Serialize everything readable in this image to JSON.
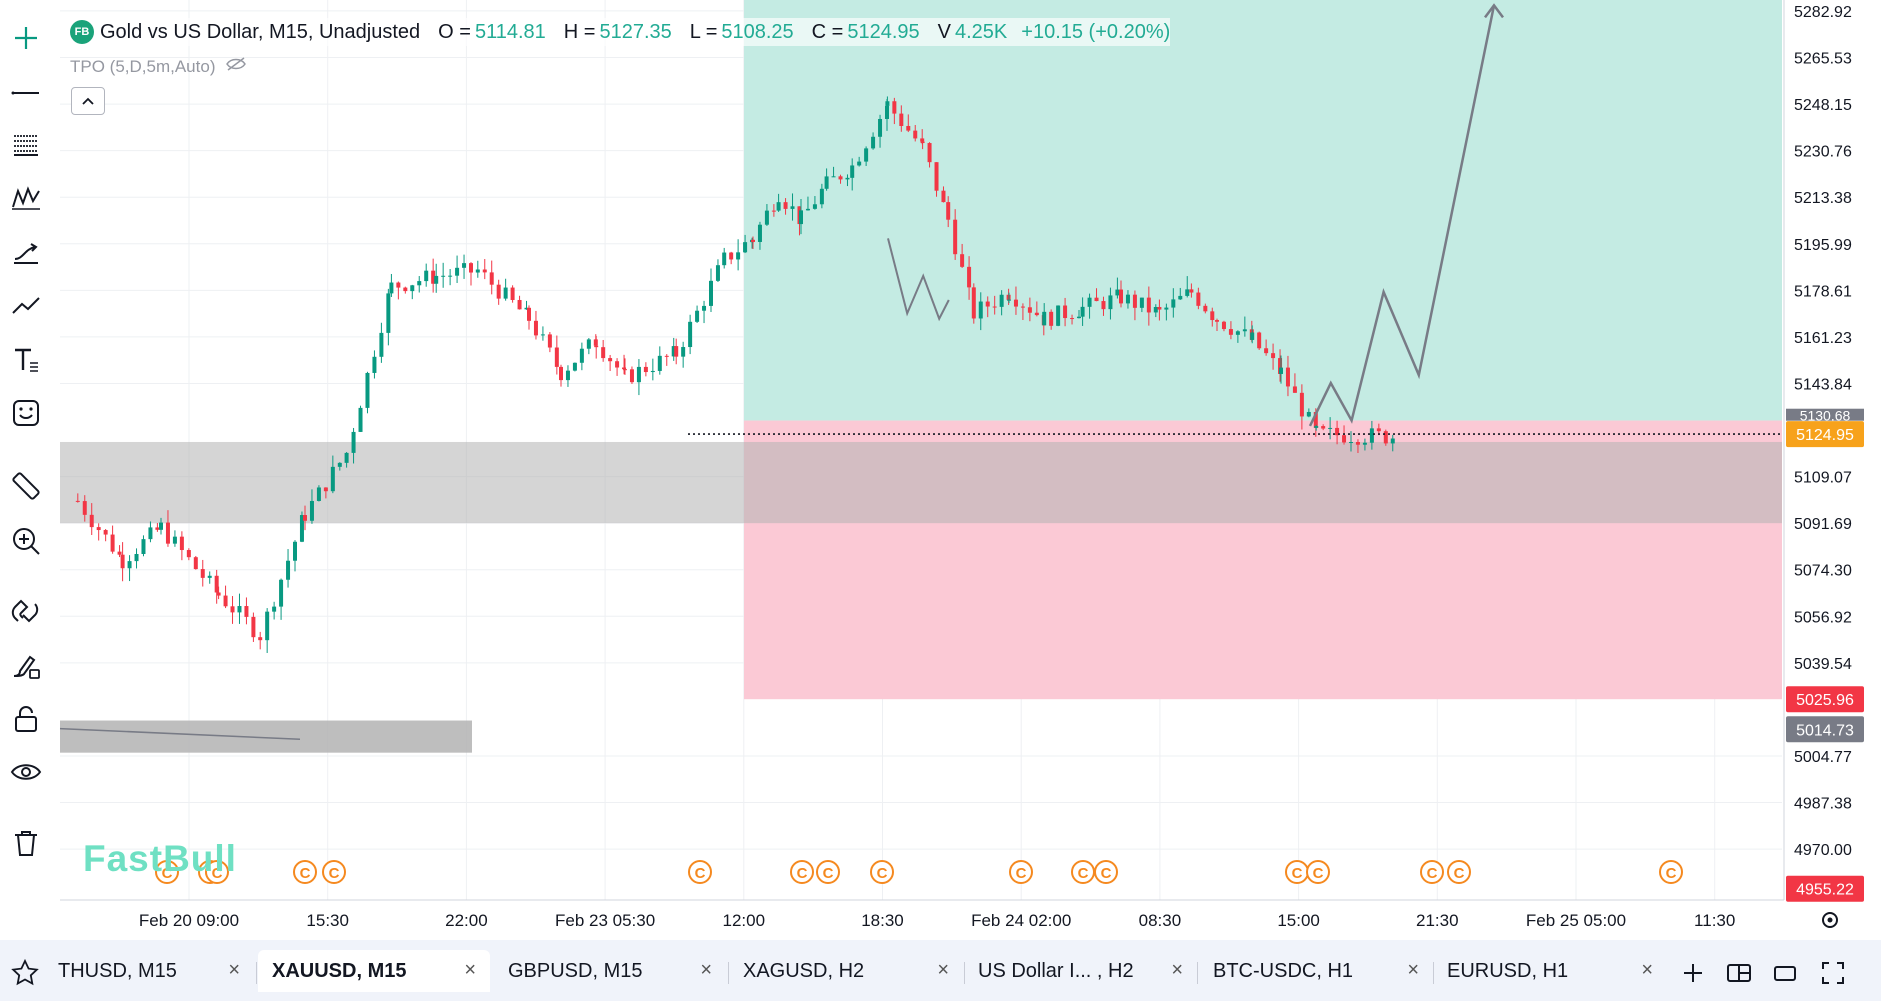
{
  "legend": {
    "logo": "FB",
    "title": "Gold vs US Dollar, M15, Unadjusted",
    "open_label": "O =",
    "open": "5114.81",
    "high_label": "H =",
    "high": "5127.35",
    "low_label": "L =",
    "low": "5108.25",
    "close_label": "C =",
    "close": "5124.95",
    "volume_label": "V",
    "volume": "4.25K",
    "change": "+10.15 (+0.20%)",
    "up_color": "#22ab94"
  },
  "indicator": {
    "label": "TPO (5,D,5m,Auto)"
  },
  "watermark": "FastBull",
  "price_axis": {
    "ticks": [
      "5282.92",
      "5265.53",
      "5248.15",
      "5230.76",
      "5213.38",
      "5195.99",
      "5178.61",
      "5161.23",
      "5143.84",
      "5109.07",
      "5091.69",
      "5074.30",
      "5056.92",
      "5039.54",
      "5004.77",
      "4987.38",
      "4970.00"
    ],
    "hidden_label": "5130.68",
    "badges": [
      {
        "value": "5124.95",
        "color": "#f7a21b"
      },
      {
        "value": "5025.96",
        "color": "#f23645"
      },
      {
        "value": "5014.73",
        "color": "#787b86"
      },
      {
        "value": "4955.22",
        "color": "#f23645"
      }
    ]
  },
  "time_axis": {
    "labels": [
      "Feb 20 09:00",
      "15:30",
      "22:00",
      "Feb 23 05:30",
      "12:00",
      "18:30",
      "Feb 24 02:00",
      "08:30",
      "15:00",
      "21:30",
      "Feb 25 05:00",
      "11:30"
    ]
  },
  "event_marker_symbol": "C",
  "colors": {
    "up": "#089981",
    "down": "#f23645",
    "profit_zone": "#c4ebe3",
    "loss_zone": "#fbc9d5",
    "grey_zone": "#b3b3b3",
    "event": "#f5891f"
  },
  "tabs": [
    {
      "label": "THUSD, M15"
    },
    {
      "label": "XAUUSD, M15"
    },
    {
      "label": "GBPUSD, M15"
    },
    {
      "label": "XAGUSD, H2"
    },
    {
      "label": "US Dollar I... , H2"
    },
    {
      "label": "BTC-USDC, H1"
    },
    {
      "label": "EURUSD, H1"
    }
  ],
  "tab_close_symbol": "×",
  "tools": [
    "crosshair-icon",
    "horizontal-line-icon",
    "fib-retracement-icon",
    "pattern-icon",
    "prediction-icon",
    "trend-line-icon",
    "text-icon",
    "emoji-icon",
    "ruler-icon",
    "zoom-in-icon",
    "magnet-icon",
    "brush-lock-icon",
    "lock-icon",
    "eye-icon",
    "trash-icon"
  ],
  "chart_data": {
    "type": "candlestick",
    "symbol": "XAUUSD",
    "timeframe": "M15",
    "y_range": [
      4951,
      5287
    ],
    "path_points": [
      [
        8,
        5100
      ],
      [
        36,
        5078
      ],
      [
        60,
        5090
      ],
      [
        96,
        5065
      ],
      [
        122,
        5050
      ],
      [
        150,
        5095
      ],
      [
        176,
        5118
      ],
      [
        204,
        5180
      ],
      [
        232,
        5184
      ],
      [
        258,
        5186
      ],
      [
        290,
        5168
      ],
      [
        310,
        5148
      ],
      [
        332,
        5160
      ],
      [
        350,
        5146
      ],
      [
        382,
        5155
      ],
      [
        412,
        5190
      ],
      [
        430,
        5198
      ],
      [
        446,
        5215
      ],
      [
        460,
        5205
      ],
      [
        476,
        5218
      ],
      [
        492,
        5225
      ],
      [
        514,
        5248
      ],
      [
        536,
        5232
      ],
      [
        552,
        5205
      ],
      [
        568,
        5170
      ],
      [
        590,
        5178
      ],
      [
        612,
        5168
      ],
      [
        636,
        5172
      ],
      [
        660,
        5176
      ],
      [
        684,
        5170
      ],
      [
        704,
        5178
      ],
      [
        720,
        5168
      ],
      [
        742,
        5160
      ],
      [
        760,
        5148
      ],
      [
        782,
        5125
      ],
      [
        830,
        5124
      ]
    ],
    "projection": [
      [
        0,
        5128
      ],
      [
        13,
        5144
      ],
      [
        26,
        5130
      ],
      [
        46,
        5178
      ],
      [
        68,
        5147
      ],
      [
        115,
        5285
      ]
    ],
    "zigzag": [
      [
        0,
        5198
      ],
      [
        12,
        5170
      ],
      [
        22,
        5184
      ],
      [
        32,
        5168
      ],
      [
        38,
        5175
      ]
    ],
    "zones": {
      "profit": [
        5130,
        5287
      ],
      "loss": [
        5025.96,
        5130
      ],
      "grey_upper": [
        5091.69,
        5122
      ],
      "grey_lower": [
        5006,
        5018
      ]
    }
  }
}
